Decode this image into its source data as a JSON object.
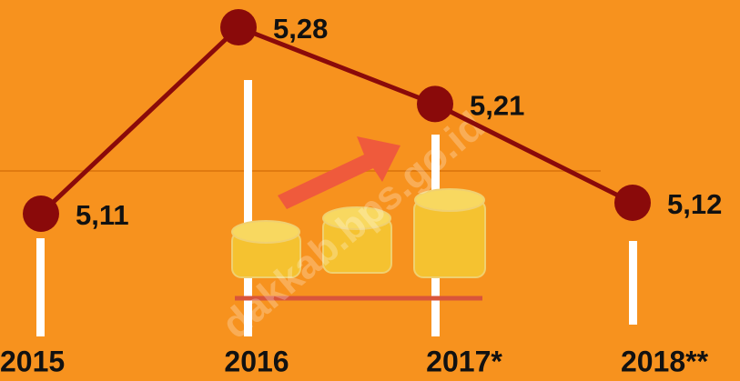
{
  "chart_data": {
    "type": "line",
    "categories": [
      "2015",
      "2016",
      "2017*",
      "2018**"
    ],
    "values": [
      5.11,
      5.28,
      5.21,
      5.12
    ],
    "value_labels": [
      "5,11",
      "5,28",
      "5,21",
      "5,12"
    ],
    "color": "#8a0a0a",
    "watermark": "dakkab.bps.go.id"
  }
}
